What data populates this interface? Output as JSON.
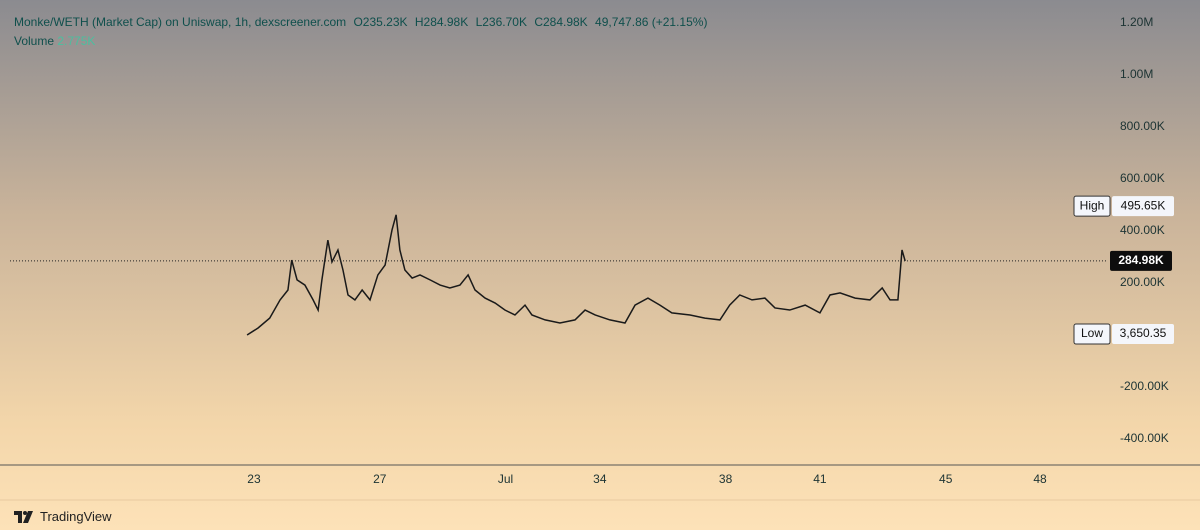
{
  "header": {
    "title": "Monke/WETH (Market Cap) on Uniswap, 1h, dexscreener.com",
    "open": "O235.23K",
    "high": "H284.98K",
    "low": "L236.70K",
    "close": "C284.98K",
    "change": "49,747.86 (+21.15%)",
    "volume_label": "Volume",
    "volume_value": "2.775K"
  },
  "chart_data": {
    "type": "line",
    "color": "#1a1a1a",
    "x": [
      22.78,
      23.13,
      23.5,
      23.83,
      24.08,
      24.2,
      24.37,
      24.62,
      24.88,
      25.04,
      25.16,
      25.35,
      25.48,
      25.67,
      25.83,
      25.99,
      26.21,
      26.44,
      26.69,
      26.94,
      27.17,
      27.39,
      27.52,
      27.64,
      27.8,
      28.03,
      28.28,
      28.6,
      28.92,
      29.23,
      29.55,
      29.81,
      30.03,
      30.35,
      30.67,
      30.98,
      31.3,
      31.62,
      31.84,
      32.26,
      32.73,
      33.21,
      33.53,
      33.85,
      34.32,
      34.8,
      35.12,
      35.53,
      35.91,
      36.29,
      36.87,
      37.34,
      37.82,
      38.13,
      38.45,
      38.84,
      39.25,
      39.57,
      40.04,
      40.53,
      41.0,
      41.32,
      41.64,
      42.12,
      42.59,
      42.98,
      43.23,
      43.48,
      43.61,
      43.71
    ],
    "values": [
      0,
      27000,
      65000,
      135000,
      173000,
      288000,
      212000,
      192000,
      135000,
      96000,
      212000,
      365000,
      281000,
      327000,
      250000,
      154000,
      135000,
      173000,
      135000,
      231000,
      269000,
      404000,
      462000,
      327000,
      250000,
      219000,
      231000,
      212000,
      192000,
      181000,
      192000,
      231000,
      173000,
      142000,
      123000,
      96000,
      77000,
      115000,
      77000,
      58000,
      46000,
      58000,
      96000,
      77000,
      58000,
      46000,
      115000,
      142000,
      115000,
      85000,
      77000,
      65000,
      58000,
      115000,
      154000,
      135000,
      142000,
      104000,
      96000,
      115000,
      85000,
      154000,
      162000,
      142000,
      135000,
      181000,
      135000,
      135000,
      327000,
      284980
    ],
    "xlim": [
      15.24,
      50.13
    ],
    "xticks": [
      23,
      27,
      {
        "value": 31,
        "label": "Jul"
      },
      34,
      38,
      41,
      45,
      48
    ],
    "ylim": [
      -500000,
      1250000
    ],
    "yticks": [
      {
        "value": 1200000,
        "label": "1.20M"
      },
      {
        "value": 1000000,
        "label": "1.00M"
      },
      {
        "value": 800000,
        "label": "800.00K"
      },
      {
        "value": 600000,
        "label": "600.00K"
      },
      {
        "value": 400000,
        "label": "400.00K"
      },
      {
        "value": 200000,
        "label": "200.00K"
      },
      {
        "value": -200000,
        "label": "-200.00K"
      },
      {
        "value": -400000,
        "label": "-400.00K"
      }
    ],
    "last_price": {
      "value": 284980,
      "label": "284.98K"
    },
    "high": {
      "name": "High",
      "value": 495650,
      "label": "495.65K"
    },
    "low": {
      "name": "Low",
      "value": 3650.35,
      "label": "3,650.35"
    }
  },
  "footer": {
    "brand": "TradingView"
  }
}
